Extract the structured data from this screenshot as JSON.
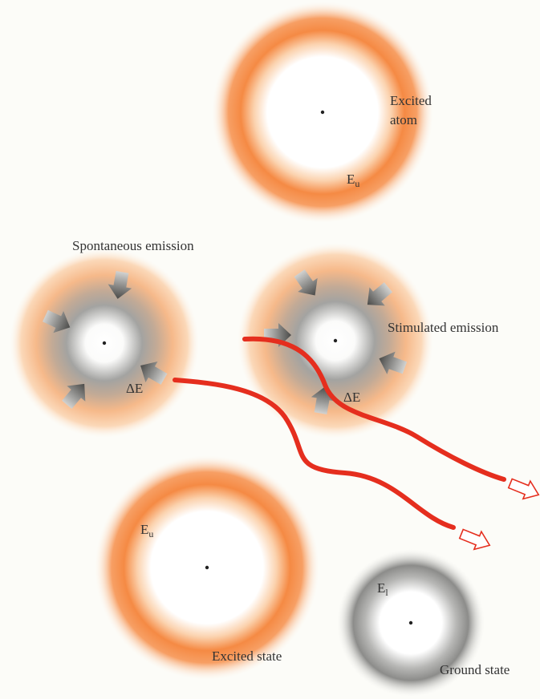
{
  "colors": {
    "background": "#fcfcf8",
    "excited_orange": "#f47a32",
    "ground_gray": "#7c7c7c",
    "photon_red": "#e52e1e",
    "text": "#333333"
  },
  "panels": {
    "top_atom": {
      "label_line1": "Excited",
      "label_line2": "atom",
      "energy_symbol": "E",
      "energy_subscript": "u"
    },
    "spontaneous": {
      "title": "Spontaneous emission",
      "delta_e": "ΔE"
    },
    "stimulated": {
      "title": "Stimulated emission",
      "delta_e": "ΔE"
    },
    "excited_state": {
      "energy_symbol": "E",
      "energy_subscript": "u",
      "label": "Excited state"
    },
    "ground_state": {
      "energy_symbol": "E",
      "energy_subscript": "l",
      "label": "Ground state"
    }
  }
}
